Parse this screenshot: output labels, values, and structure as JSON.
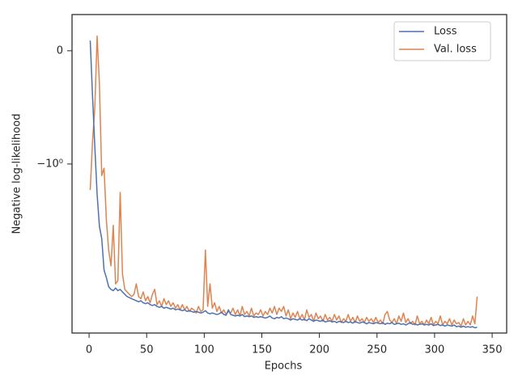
{
  "chart_data": {
    "type": "line",
    "xlabel": "Epochs",
    "ylabel": "Negative log-likelihood",
    "yscale": "symlog",
    "linthresh": 1,
    "linscale": 1,
    "xlim": [
      -14.8,
      362.6
    ],
    "xticks": [
      0,
      50,
      100,
      150,
      200,
      250,
      300,
      350
    ],
    "ylim": [
      -45.6,
      0.32
    ],
    "yticks": [
      0,
      {
        "value": -1,
        "label": "−10⁰"
      }
    ],
    "legend": "upper right",
    "grid": false,
    "x": [
      1,
      3,
      5,
      7,
      9,
      11,
      13,
      15,
      17,
      19,
      21,
      23,
      25,
      27,
      29,
      31,
      33,
      35,
      37,
      39,
      41,
      43,
      45,
      47,
      49,
      51,
      53,
      55,
      57,
      59,
      61,
      63,
      65,
      67,
      69,
      71,
      73,
      75,
      77,
      79,
      81,
      83,
      85,
      87,
      89,
      91,
      93,
      95,
      97,
      99,
      101,
      103,
      105,
      107,
      109,
      111,
      113,
      115,
      117,
      119,
      121,
      123,
      125,
      127,
      129,
      131,
      133,
      135,
      137,
      139,
      141,
      143,
      145,
      147,
      149,
      151,
      153,
      155,
      157,
      159,
      161,
      163,
      165,
      167,
      169,
      171,
      173,
      175,
      177,
      179,
      181,
      183,
      185,
      187,
      189,
      191,
      193,
      195,
      197,
      199,
      201,
      203,
      205,
      207,
      209,
      211,
      213,
      215,
      217,
      219,
      221,
      223,
      225,
      227,
      229,
      231,
      233,
      235,
      237,
      239,
      241,
      243,
      245,
      247,
      249,
      251,
      253,
      255,
      257,
      259,
      261,
      263,
      265,
      267,
      269,
      271,
      273,
      275,
      277,
      279,
      281,
      283,
      285,
      287,
      289,
      291,
      293,
      295,
      297,
      299,
      301,
      303,
      305,
      307,
      309,
      311,
      313,
      315,
      317,
      319,
      321,
      323,
      325,
      327,
      329,
      331,
      333,
      335,
      337
    ],
    "series": [
      {
        "name": "Loss",
        "color": "#4c72b0",
        "values": [
          0.09,
          -0.4,
          -0.85,
          -2.0,
          -4.1,
          -5.4,
          -11,
          -13,
          -16,
          -17,
          -17.5,
          -16.5,
          -17.5,
          -17,
          -18,
          -19,
          -20,
          -20.5,
          -21,
          -21.5,
          -22,
          -22.5,
          -22,
          -23,
          -23.5,
          -23,
          -24,
          -24.5,
          -24,
          -25,
          -25.5,
          -25,
          -26,
          -25.5,
          -26,
          -26.5,
          -26,
          -27,
          -26.5,
          -27,
          -27.5,
          -27,
          -28,
          -27.5,
          -28,
          -28.5,
          -28,
          -28.5,
          -29,
          -28.5,
          -27.5,
          -29,
          -29.5,
          -29,
          -29.5,
          -30,
          -29.5,
          -28.5,
          -30,
          -30.5,
          -27,
          -30,
          -30.5,
          -31,
          -30.5,
          -31,
          -30,
          -31.5,
          -31,
          -31.5,
          -31,
          -32,
          -31.5,
          -32,
          -31.5,
          -32,
          -32.5,
          -32,
          -31,
          -32.5,
          -33,
          -32,
          -32.5,
          -31.5,
          -33,
          -32.5,
          -33,
          -34,
          -33,
          -33.5,
          -34,
          -33,
          -34,
          -33.5,
          -34.5,
          -33,
          -34,
          -35,
          -34,
          -34.5,
          -35,
          -34,
          -35.5,
          -35,
          -34.5,
          -35.5,
          -35,
          -36,
          -35,
          -35.5,
          -36,
          -35,
          -36,
          -35.5,
          -36.5,
          -35,
          -36,
          -36.5,
          -35.5,
          -36,
          -37,
          -36,
          -36.5,
          -37,
          -36,
          -36.5,
          -37,
          -36,
          -37.5,
          -36.5,
          -37,
          -36,
          -37.5,
          -37,
          -36.5,
          -37.5,
          -37,
          -38,
          -37,
          -36,
          -37.5,
          -37,
          -38,
          -37.5,
          -37,
          -38,
          -37.5,
          -38,
          -37,
          -38.5,
          -38,
          -37.5,
          -38.5,
          -38,
          -39,
          -38,
          -38.5,
          -39,
          -38,
          -39.5,
          -39,
          -40,
          -39,
          -40,
          -39.5,
          -40,
          -39.5,
          -40.5,
          -40
        ]
      },
      {
        "name": "Val. loss",
        "color": "#dd8452",
        "values": [
          -1.8,
          -0.8,
          -0.5,
          0.13,
          -0.3,
          -1.3,
          -1.1,
          -3.5,
          -7,
          -10,
          -4,
          -15,
          -14,
          -1.9,
          -12,
          -17,
          -18,
          -19,
          -20,
          -19,
          -15,
          -20,
          -21,
          -18,
          -22,
          -20,
          -23,
          -19,
          -17,
          -24,
          -22,
          -25,
          -21,
          -24,
          -22,
          -25,
          -23,
          -26,
          -24,
          -27,
          -24,
          -27,
          -25,
          -28,
          -26,
          -27,
          -29,
          -25,
          -28,
          -27,
          -7,
          -25,
          -15,
          -26,
          -23,
          -28,
          -25,
          -29,
          -27,
          -30,
          -28,
          -29,
          -26,
          -30,
          -27,
          -31,
          -25,
          -30,
          -28,
          -31,
          -26,
          -31,
          -29,
          -30,
          -27,
          -31,
          -28,
          -30,
          -26,
          -29,
          -25,
          -30,
          -26,
          -28,
          -25,
          -31,
          -27,
          -33,
          -29,
          -32,
          -28,
          -33,
          -30,
          -34,
          -27,
          -32,
          -30,
          -35,
          -29,
          -33,
          -31,
          -35,
          -30,
          -34,
          -32,
          -35,
          -30,
          -34,
          -31,
          -36,
          -33,
          -35,
          -30,
          -35,
          -32,
          -36,
          -31,
          -35,
          -33,
          -36,
          -32,
          -35,
          -33,
          -36,
          -32,
          -36,
          -34,
          -37,
          -30,
          -28,
          -34,
          -36,
          -33,
          -37,
          -31,
          -35,
          -29,
          -36,
          -33,
          -37,
          -35,
          -38,
          -31,
          -37,
          -35,
          -38,
          -34,
          -37,
          -32,
          -38,
          -35,
          -37,
          -31,
          -38,
          -35,
          -37,
          -33,
          -38,
          -34,
          -37,
          -36,
          -39,
          -33,
          -38,
          -35,
          -38,
          -31,
          -37,
          -20
        ]
      }
    ]
  }
}
